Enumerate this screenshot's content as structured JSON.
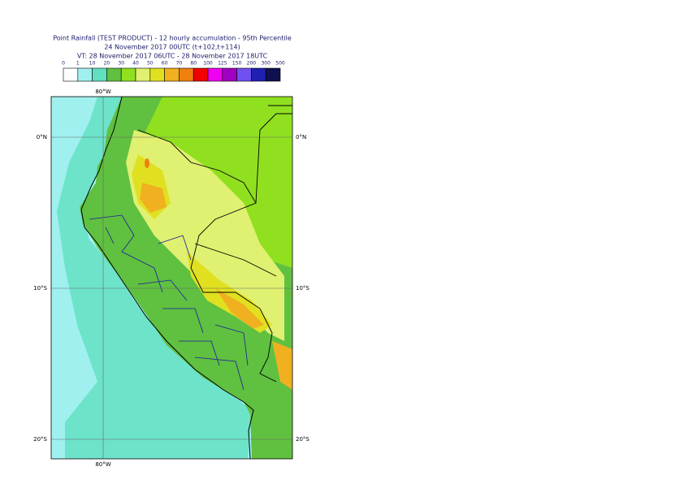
{
  "header": {
    "title": "Point Rainfall (TEST PRODUCT) - 12 hourly accumulation - 95th Percentile",
    "line2": "24 November 2017 00UTC (t+102,t+114)",
    "line3": "VT: 28 November 2017 06UTC - 28 November 2017 18UTC"
  },
  "legend": {
    "labels": [
      0,
      1,
      10,
      20,
      30,
      40,
      50,
      60,
      70,
      80,
      100,
      125,
      150,
      200,
      300,
      500
    ],
    "colors": [
      "#ffffff",
      "#a0f0f0",
      "#60e0c0",
      "#60c040",
      "#90e020",
      "#e0f070",
      "#e0e020",
      "#f0b020",
      "#f08010",
      "#f00000",
      "#f000f0",
      "#a000c0",
      "#7050f0",
      "#2020b0",
      "#101050"
    ]
  },
  "map": {
    "lon_labels": [
      "80°W"
    ],
    "lat_labels": [
      "0°N",
      "10°S",
      "20°S"
    ]
  }
}
